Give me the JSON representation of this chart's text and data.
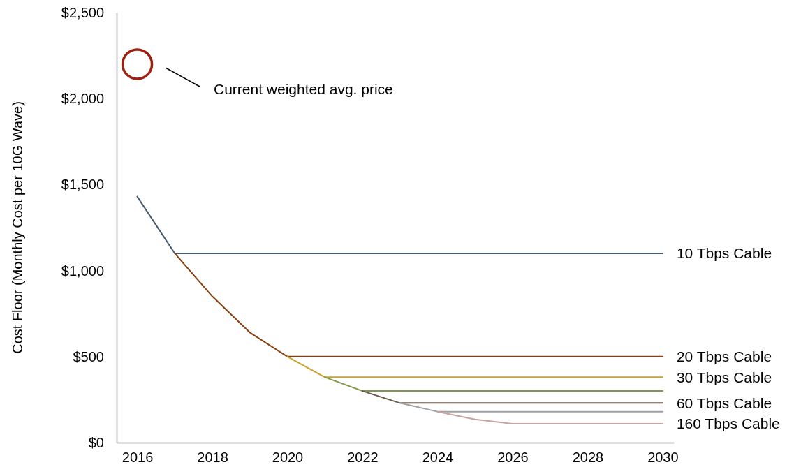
{
  "chart_data": {
    "type": "line",
    "ylabel": "Cost Floor (Monthly Cost per 10G Wave)",
    "xlim": [
      2015.45,
      2030.3
    ],
    "xticks": [
      2016,
      2018,
      2020,
      2022,
      2024,
      2026,
      2028,
      2030
    ],
    "ylim": [
      0,
      2500
    ],
    "yticks": [
      {
        "value": 0,
        "label": "$0"
      },
      {
        "value": 500,
        "label": "$500"
      },
      {
        "value": 1000,
        "label": "$1,000"
      },
      {
        "value": 1500,
        "label": "$1,500"
      },
      {
        "value": 2000,
        "label": "$2,000"
      },
      {
        "value": 2500,
        "label": "$2,500"
      }
    ],
    "grid": false,
    "marker": "none",
    "line_style": "solid",
    "series": [
      {
        "name": "10 Tbps Cable",
        "color": "#44596b",
        "x": [
          2016,
          2017,
          2030
        ],
        "values": [
          1430,
          1100,
          1100
        ]
      },
      {
        "name": "20 Tbps Cable",
        "color": "#8b3e0f",
        "x": [
          2017,
          2018,
          2019,
          2020,
          2030
        ],
        "values": [
          1100,
          850,
          640,
          500,
          500
        ]
      },
      {
        "name": "30 Tbps Cable",
        "color": "#c9a227",
        "x": [
          2020,
          2021,
          2030
        ],
        "values": [
          500,
          380,
          380
        ]
      },
      {
        "color": "#7f9a45",
        "x": [
          2021,
          2022,
          2030
        ],
        "values": [
          380,
          300,
          300
        ]
      },
      {
        "name": "60 Tbps Cable",
        "color": "#6b5a4c",
        "x": [
          2022,
          2023,
          2030
        ],
        "values": [
          300,
          230,
          230
        ]
      },
      {
        "color": "#a0a0a0",
        "x": [
          2023,
          2024,
          2030
        ],
        "values": [
          230,
          180,
          180
        ]
      },
      {
        "name": "160 Tbps Cable",
        "color": "#c9a3a0",
        "x": [
          2024,
          2025,
          2026,
          2030
        ],
        "values": [
          180,
          135,
          110,
          110
        ]
      },
      {
        "type": "scatter",
        "marker": "circle",
        "color": "#a02010",
        "x": [
          2016
        ],
        "values": [
          2200
        ]
      }
    ],
    "annotations": [
      "Current weighted avg. price"
    ]
  }
}
